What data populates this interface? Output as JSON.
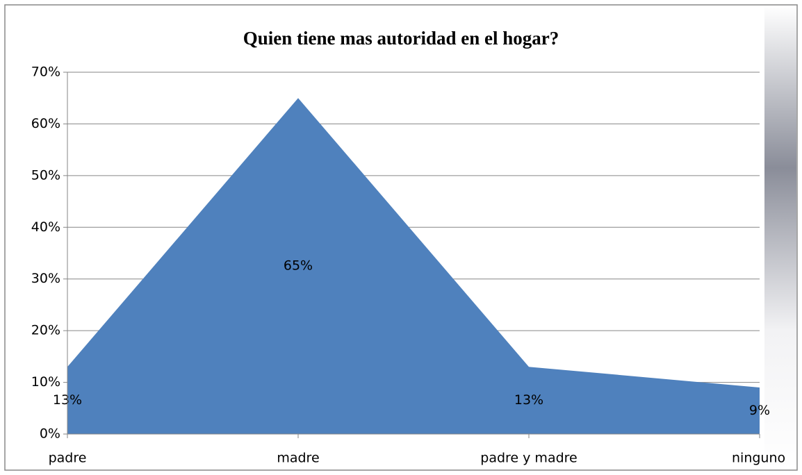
{
  "chart_data": {
    "type": "area",
    "title": "Quien tiene mas autoridad en el hogar?",
    "categories": [
      "padre",
      "madre",
      "padre y madre",
      "ninguno"
    ],
    "values": [
      13,
      65,
      13,
      9
    ],
    "value_labels": [
      "13%",
      "65%",
      "13%",
      "9%"
    ],
    "color": "#4f81bd",
    "ylim": [
      0,
      70
    ],
    "yticks": [
      {
        "value": 0,
        "label": "0%"
      },
      {
        "value": 10,
        "label": "10%"
      },
      {
        "value": 20,
        "label": "20%"
      },
      {
        "value": 30,
        "label": "30%"
      },
      {
        "value": 40,
        "label": "40%"
      },
      {
        "value": 50,
        "label": "50%"
      },
      {
        "value": 60,
        "label": "60%"
      },
      {
        "value": 70,
        "label": "70%"
      }
    ],
    "grid": true
  }
}
